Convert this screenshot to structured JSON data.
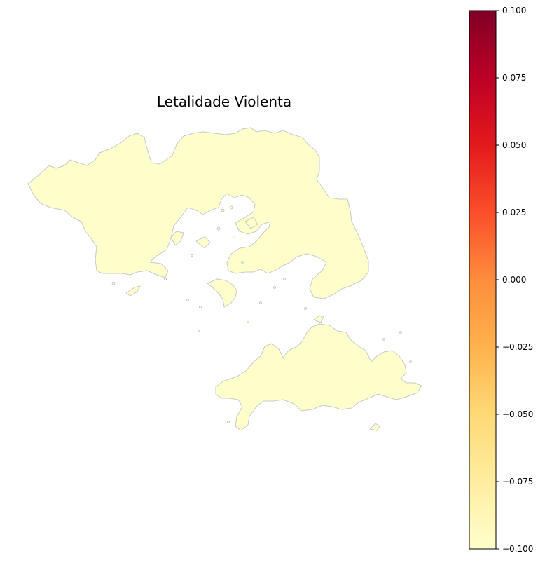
{
  "map": {
    "title": "Letalidade Violenta",
    "region_fill": "#ffffcc",
    "border_color": "#c8c8c8"
  },
  "colorbar": {
    "colormap": "YlOrRd",
    "min": -0.1,
    "max": 0.1,
    "ticks": [
      "0.100",
      "0.075",
      "0.050",
      "0.025",
      "0.000",
      "−0.025",
      "−0.050",
      "−0.075",
      "−0.100"
    ],
    "colors": [
      "#ffffcc",
      "#ffeda0",
      "#fed976",
      "#feb24c",
      "#fd8d3c",
      "#fc4e2a",
      "#e31a1c",
      "#bd0026",
      "#800026"
    ]
  }
}
